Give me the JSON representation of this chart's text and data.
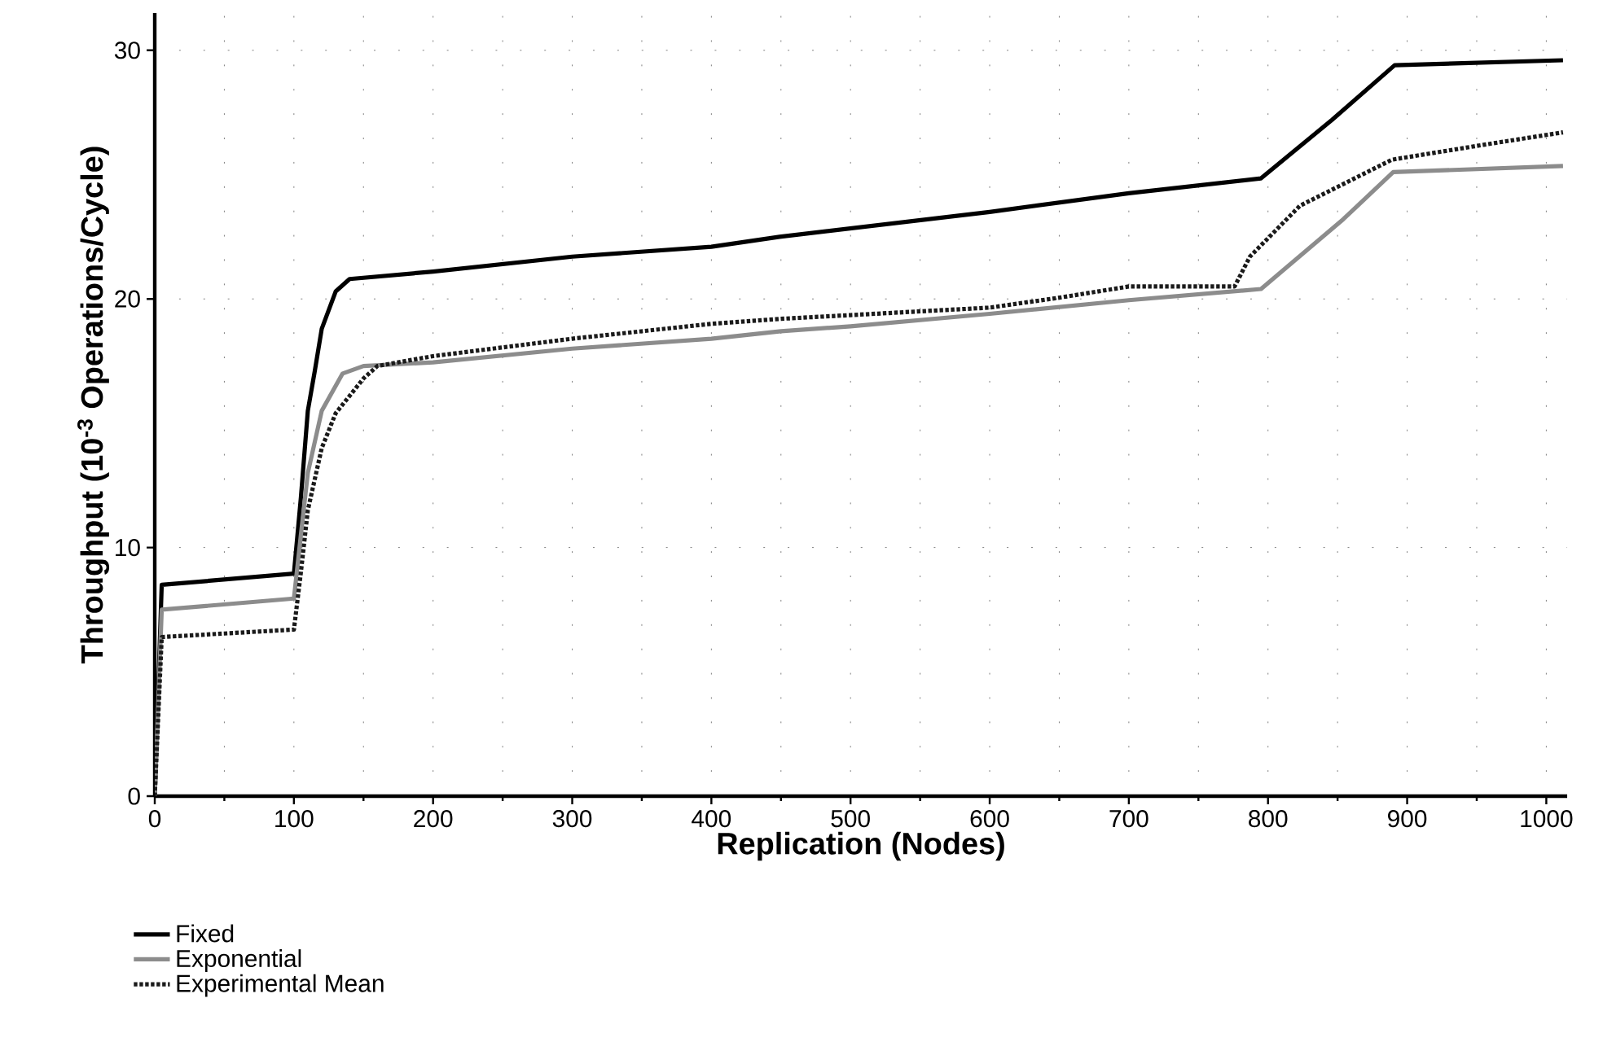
{
  "chart_data": {
    "type": "line",
    "xlabel": "Replication (Nodes)",
    "ylabel": "Throughput (10$^{-3}$ Operations/Cycle)",
    "xlim": [
      0,
      1015
    ],
    "ylim": [
      0,
      31.5
    ],
    "xticks": [
      0,
      100,
      200,
      300,
      400,
      500,
      600,
      700,
      800,
      900,
      1000
    ],
    "yticks": [
      0,
      10,
      20,
      30
    ],
    "grid": true,
    "legend": "bottom left",
    "marker": "none",
    "series": [
      {
        "name": "Fixed",
        "color": "#000000",
        "line_style": "solid",
        "x": [
          0,
          5,
          100,
          105,
          110,
          115,
          120,
          130,
          140,
          200,
          300,
          400,
          449,
          600,
          700,
          795,
          846,
          891,
          1012
        ],
        "values": [
          0,
          8.5,
          8.95,
          12,
          15.5,
          17.1,
          18.8,
          20.3,
          20.8,
          21.1,
          21.7,
          22.1,
          22.5,
          23.5,
          24.25,
          24.85,
          27.2,
          29.4,
          29.6
        ]
      },
      {
        "name": "Exponential",
        "color": "#8c8c8c",
        "line_style": "solid",
        "x": [
          0,
          5,
          100,
          105,
          110,
          120,
          135,
          150,
          200,
          300,
          400,
          450,
          500,
          600,
          700,
          795,
          854,
          890,
          1012
        ],
        "values": [
          0,
          7.5,
          7.95,
          10.5,
          13,
          15.5,
          17.0,
          17.3,
          17.45,
          18.0,
          18.4,
          18.7,
          18.9,
          19.4,
          19.95,
          20.4,
          23.2,
          25.1,
          25.35
        ]
      },
      {
        "name": "Experimental Mean",
        "color": "#1a1a1a",
        "line_style": "dotted",
        "x": [
          0,
          5,
          100,
          105,
          110,
          120,
          130,
          150,
          160,
          200,
          300,
          400,
          450,
          500,
          600,
          650,
          700,
          776,
          787,
          823,
          889,
          955,
          1012
        ],
        "values": [
          0,
          6.4,
          6.7,
          9,
          11.5,
          14,
          15.4,
          16.8,
          17.3,
          17.7,
          18.4,
          19.0,
          19.2,
          19.35,
          19.65,
          20.05,
          20.5,
          20.5,
          21.7,
          23.75,
          25.6,
          26.2,
          26.7
        ]
      }
    ]
  }
}
